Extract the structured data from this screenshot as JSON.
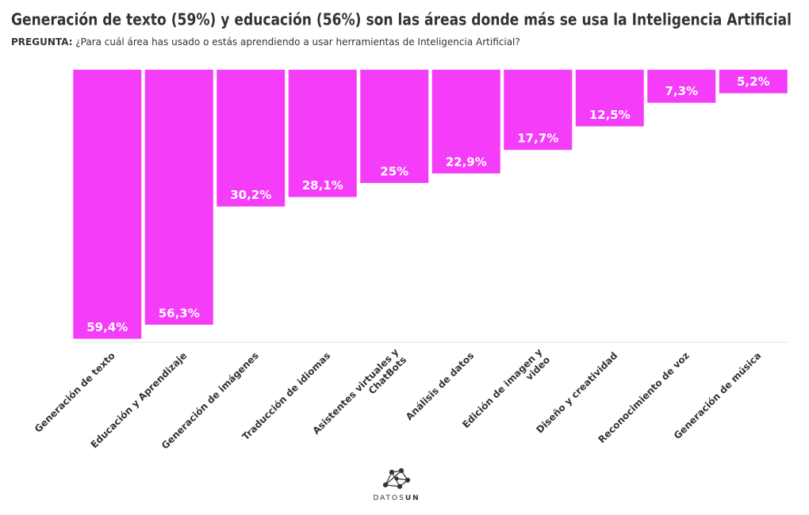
{
  "chart_data": {
    "type": "bar",
    "y_inverted": true,
    "title": "Generación de texto (59%) y educación (56%) son las áreas donde más se usa la Inteligencia Artificial",
    "subtitle_label": "PREGUNTA:",
    "subtitle": "¿Para cuál área has usado o estás aprendiendo a usar herramientas de Inteligencia Artificial?",
    "categories": [
      "Generación de texto",
      "Educación y Aprendizaje",
      "Generación de imágenes",
      "Traducción de idiomas",
      "Asistentes virtuales y ChatBots",
      "Análisis de datos",
      "Edición de imagen y video",
      "Diseño y creatividad",
      "Reconocimiento de voz",
      "Generación de música"
    ],
    "values": [
      59.4,
      56.3,
      30.2,
      28.1,
      25,
      22.9,
      17.7,
      12.5,
      7.3,
      5.2
    ],
    "value_labels": [
      "59,4%",
      "56,3%",
      "30,2%",
      "28,1%",
      "25%",
      "22,9%",
      "17,7%",
      "12,5%",
      "7,3%",
      "5,2%"
    ],
    "color": "#f53cf9",
    "ylim": [
      0,
      60
    ]
  },
  "footer": {
    "logo_light": "DATOS",
    "logo_bold": "UN"
  }
}
